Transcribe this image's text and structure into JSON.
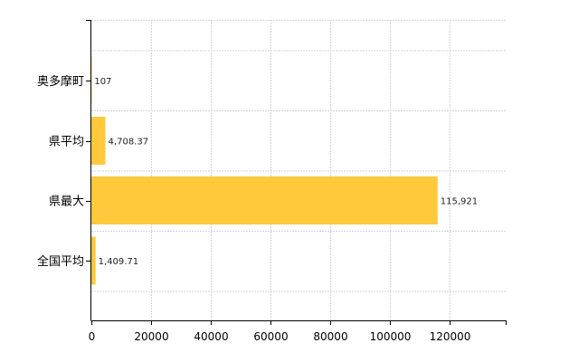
{
  "chart_data": {
    "type": "bar",
    "orientation": "horizontal",
    "categories": [
      "奥多摩町",
      "県平均",
      "県最大",
      "全国平均"
    ],
    "values": [
      107,
      4708.37,
      115921,
      1409.71
    ],
    "data_labels": [
      "107",
      "4,708.37",
      "115,921",
      "1,409.71"
    ],
    "x_ticks": [
      0,
      20000,
      40000,
      60000,
      80000,
      100000,
      120000
    ],
    "x_tick_labels": [
      "0",
      "20000",
      "40000",
      "60000",
      "80000",
      "100000",
      "120000"
    ],
    "xlim": [
      0,
      139000
    ],
    "grid": "vertical-dashed",
    "legend": "none",
    "colors": {
      "bar": "#ffc93b",
      "axis": "#000000",
      "grid": "#d6d6d6",
      "label": "#222222"
    }
  }
}
